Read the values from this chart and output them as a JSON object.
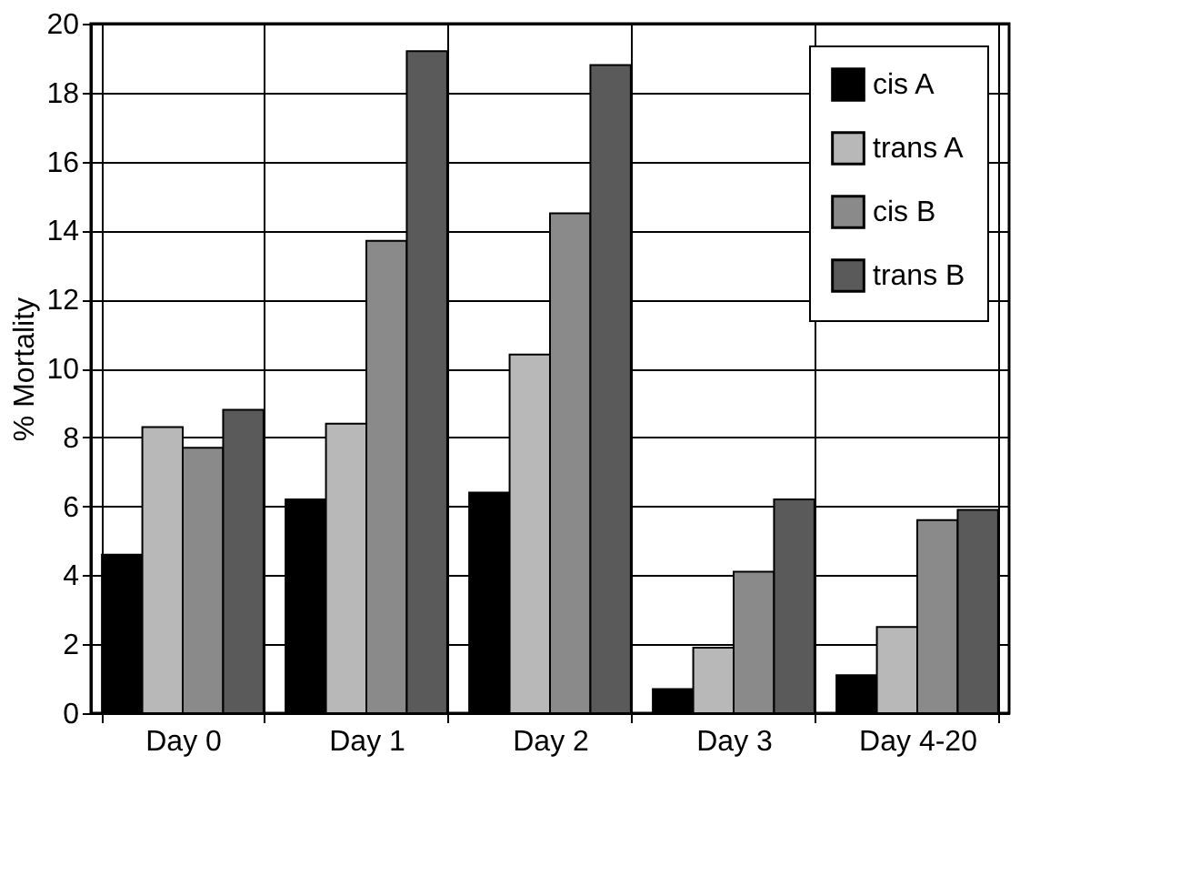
{
  "chart_data": {
    "type": "bar",
    "ylabel": "% Mortality",
    "categories": [
      "Day 0",
      "Day 1",
      "Day 2",
      "Day 3",
      "Day 4-20"
    ],
    "series": [
      {
        "name": "cis A",
        "color": "#000000",
        "values": [
          4.6,
          6.2,
          6.4,
          0.7,
          1.1
        ]
      },
      {
        "name": "trans A",
        "color": "#b8b8b8",
        "values": [
          8.3,
          8.4,
          10.4,
          1.9,
          2.5
        ]
      },
      {
        "name": "cis B",
        "color": "#8a8a8a",
        "values": [
          7.7,
          13.7,
          14.5,
          4.1,
          5.6
        ]
      },
      {
        "name": "trans B",
        "color": "#5a5a5a",
        "values": [
          8.8,
          19.2,
          18.8,
          6.2,
          5.9
        ]
      }
    ],
    "ylim": [
      0,
      20
    ],
    "yticks": [
      0,
      2,
      4,
      6,
      8,
      10,
      12,
      14,
      16,
      18,
      20
    ],
    "grid": true,
    "legend": "top right"
  }
}
